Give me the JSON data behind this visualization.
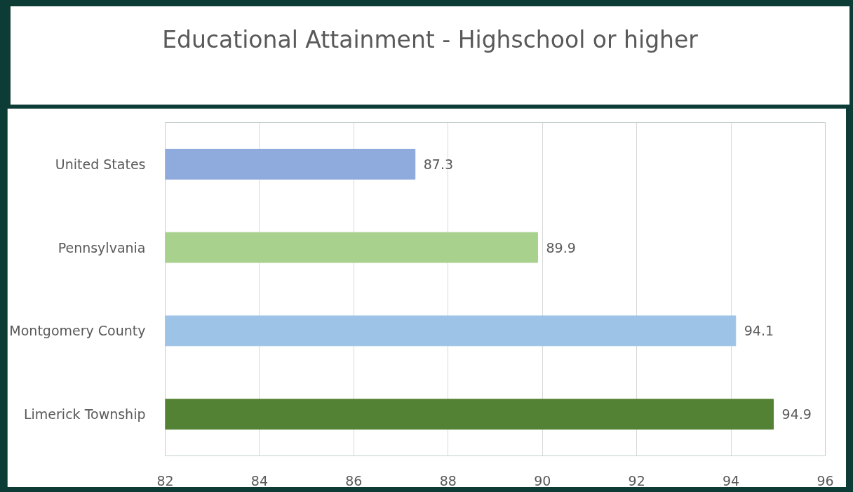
{
  "chart_data": {
    "type": "bar",
    "orientation": "horizontal",
    "title": "Educational Attainment - Highschool or higher",
    "categories": [
      "United States",
      "Pennsylvania",
      "Montgomery County",
      "Limerick Township"
    ],
    "values": [
      87.3,
      89.9,
      94.1,
      94.9
    ],
    "colors": [
      "#8faadc",
      "#a9d18e",
      "#9dc3e6",
      "#548235"
    ],
    "xlim": [
      82,
      96
    ],
    "xticks": [
      82,
      84,
      86,
      88,
      90,
      92,
      94,
      96
    ],
    "grid": "x",
    "data_labels": true
  }
}
